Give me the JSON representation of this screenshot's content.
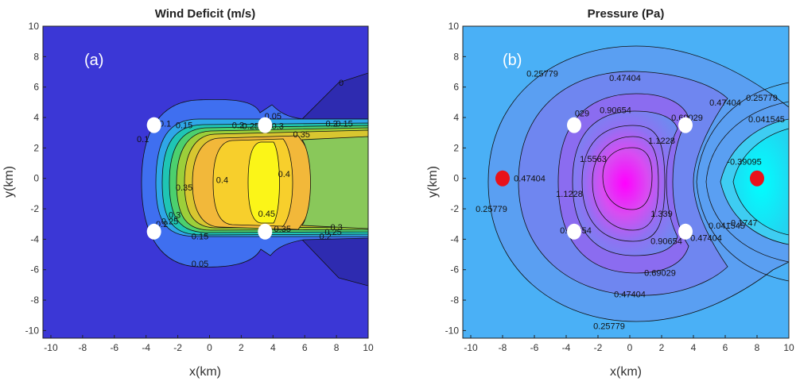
{
  "chart_data": [
    {
      "type": "contour",
      "panel_label": "(a)",
      "title": "Wind Deficit (m/s)",
      "xlabel": "x(km)",
      "ylabel": "y(km)",
      "xlim": [
        -10.5,
        10
      ],
      "ylim": [
        -10.5,
        10
      ],
      "xticks": [
        -10,
        -8,
        -6,
        -4,
        -2,
        0,
        2,
        4,
        6,
        8,
        10
      ],
      "yticks": [
        -10,
        -8,
        -6,
        -4,
        -2,
        0,
        2,
        4,
        6,
        8,
        10
      ],
      "contour_labels": [
        {
          "text": "0",
          "x": 8.3,
          "y": 6.3
        },
        {
          "text": "0.05",
          "x": 4.0,
          "y": 4.1
        },
        {
          "text": "0.1",
          "x": -2.8,
          "y": 3.6
        },
        {
          "text": "0.15",
          "x": -1.6,
          "y": 3.5
        },
        {
          "text": "0.2",
          "x": 1.8,
          "y": 3.5
        },
        {
          "text": "0.25",
          "x": 2.6,
          "y": 3.45
        },
        {
          "text": "0.3",
          "x": 4.3,
          "y": 3.45
        },
        {
          "text": "0.35",
          "x": 5.8,
          "y": 2.9
        },
        {
          "text": "0.15",
          "x": 8.5,
          "y": 3.6
        },
        {
          "text": "0.2",
          "x": 7.7,
          "y": 3.6
        },
        {
          "text": "0.1",
          "x": -4.2,
          "y": 2.6
        },
        {
          "text": "0.4",
          "x": 0.8,
          "y": -0.1
        },
        {
          "text": "0.4",
          "x": 4.7,
          "y": 0.3
        },
        {
          "text": "0.35",
          "x": -1.6,
          "y": -0.6
        },
        {
          "text": "0.45",
          "x": 3.6,
          "y": -2.3
        },
        {
          "text": "0.3",
          "x": -2.2,
          "y": -2.4
        },
        {
          "text": "0.25",
          "x": -2.5,
          "y": -2.8
        },
        {
          "text": "0.2",
          "x": -3.0,
          "y": -3.0
        },
        {
          "text": "0.15",
          "x": -0.6,
          "y": -3.8
        },
        {
          "text": "0.35",
          "x": 4.6,
          "y": -3.3
        },
        {
          "text": "0.3",
          "x": 8.0,
          "y": -3.2
        },
        {
          "text": "0.25",
          "x": 7.8,
          "y": -3.5
        },
        {
          "text": "0.2",
          "x": 7.3,
          "y": -3.8
        },
        {
          "text": "0.05",
          "x": -0.6,
          "y": -5.6
        }
      ],
      "markers": [
        {
          "x": -3.5,
          "y": 3.5,
          "color": "#ffffff"
        },
        {
          "x": 3.5,
          "y": 3.5,
          "color": "#ffffff"
        },
        {
          "x": -3.5,
          "y": -3.5,
          "color": "#ffffff"
        },
        {
          "x": 3.5,
          "y": -3.5,
          "color": "#ffffff"
        }
      ]
    },
    {
      "type": "contour",
      "panel_label": "(b)",
      "title": "Pressure (Pa)",
      "xlabel": "x(km)",
      "ylabel": "y(km)",
      "xlim": [
        -10.5,
        10
      ],
      "ylim": [
        -10.5,
        10
      ],
      "xticks": [
        -10,
        -8,
        -6,
        -4,
        -2,
        0,
        2,
        4,
        6,
        8,
        10
      ],
      "yticks": [
        -10,
        -8,
        -6,
        -4,
        -2,
        0,
        2,
        4,
        6,
        8,
        10
      ],
      "contour_labels": [
        {
          "text": "0.25779",
          "x": -5.5,
          "y": 6.9
        },
        {
          "text": "0.47404",
          "x": -0.3,
          "y": 6.6
        },
        {
          "text": "0.47404",
          "x": 6.0,
          "y": 5.0
        },
        {
          "text": "0.25779",
          "x": 8.3,
          "y": 5.3
        },
        {
          "text": "0.041545",
          "x": 8.6,
          "y": 3.9
        },
        {
          "text": "0.90654",
          "x": -0.9,
          "y": 4.5
        },
        {
          "text": "0.69029",
          "x": 3.6,
          "y": 4.0
        },
        {
          "text": "029",
          "x": -3.0,
          "y": 4.3
        },
        {
          "text": "1.5563",
          "x": -2.3,
          "y": 1.3
        },
        {
          "text": "1.1228",
          "x": 2.0,
          "y": 2.5
        },
        {
          "text": "-0.39095",
          "x": 7.2,
          "y": 1.1
        },
        {
          "text": "0.47404",
          "x": -6.3,
          "y": 0.0
        },
        {
          "text": "1.1228",
          "x": -3.8,
          "y": -1.0
        },
        {
          "text": "0.90654",
          "x": -3.4,
          "y": -3.4
        },
        {
          "text": "0.25779",
          "x": -8.7,
          "y": -2.0
        },
        {
          "text": "1.339",
          "x": 2.0,
          "y": -2.3
        },
        {
          "text": "0.90654",
          "x": 2.3,
          "y": -4.1
        },
        {
          "text": "0.47404",
          "x": 4.8,
          "y": -3.9
        },
        {
          "text": "0.041545",
          "x": 6.1,
          "y": -3.1
        },
        {
          "text": "-0.1747",
          "x": 7.1,
          "y": -2.9
        },
        {
          "text": "0.69029",
          "x": 1.9,
          "y": -6.2
        },
        {
          "text": "0.47404",
          "x": 0.0,
          "y": -7.6
        },
        {
          "text": "0.25779",
          "x": -1.3,
          "y": -9.7
        }
      ],
      "markers": [
        {
          "x": -3.5,
          "y": 3.5,
          "color": "#ffffff"
        },
        {
          "x": 3.5,
          "y": 3.5,
          "color": "#ffffff"
        },
        {
          "x": -3.5,
          "y": -3.5,
          "color": "#ffffff"
        },
        {
          "x": 3.5,
          "y": -3.5,
          "color": "#ffffff"
        },
        {
          "x": -8,
          "y": 0,
          "color": "#e8121a"
        },
        {
          "x": 8,
          "y": 0,
          "color": "#e8121a"
        }
      ]
    }
  ]
}
